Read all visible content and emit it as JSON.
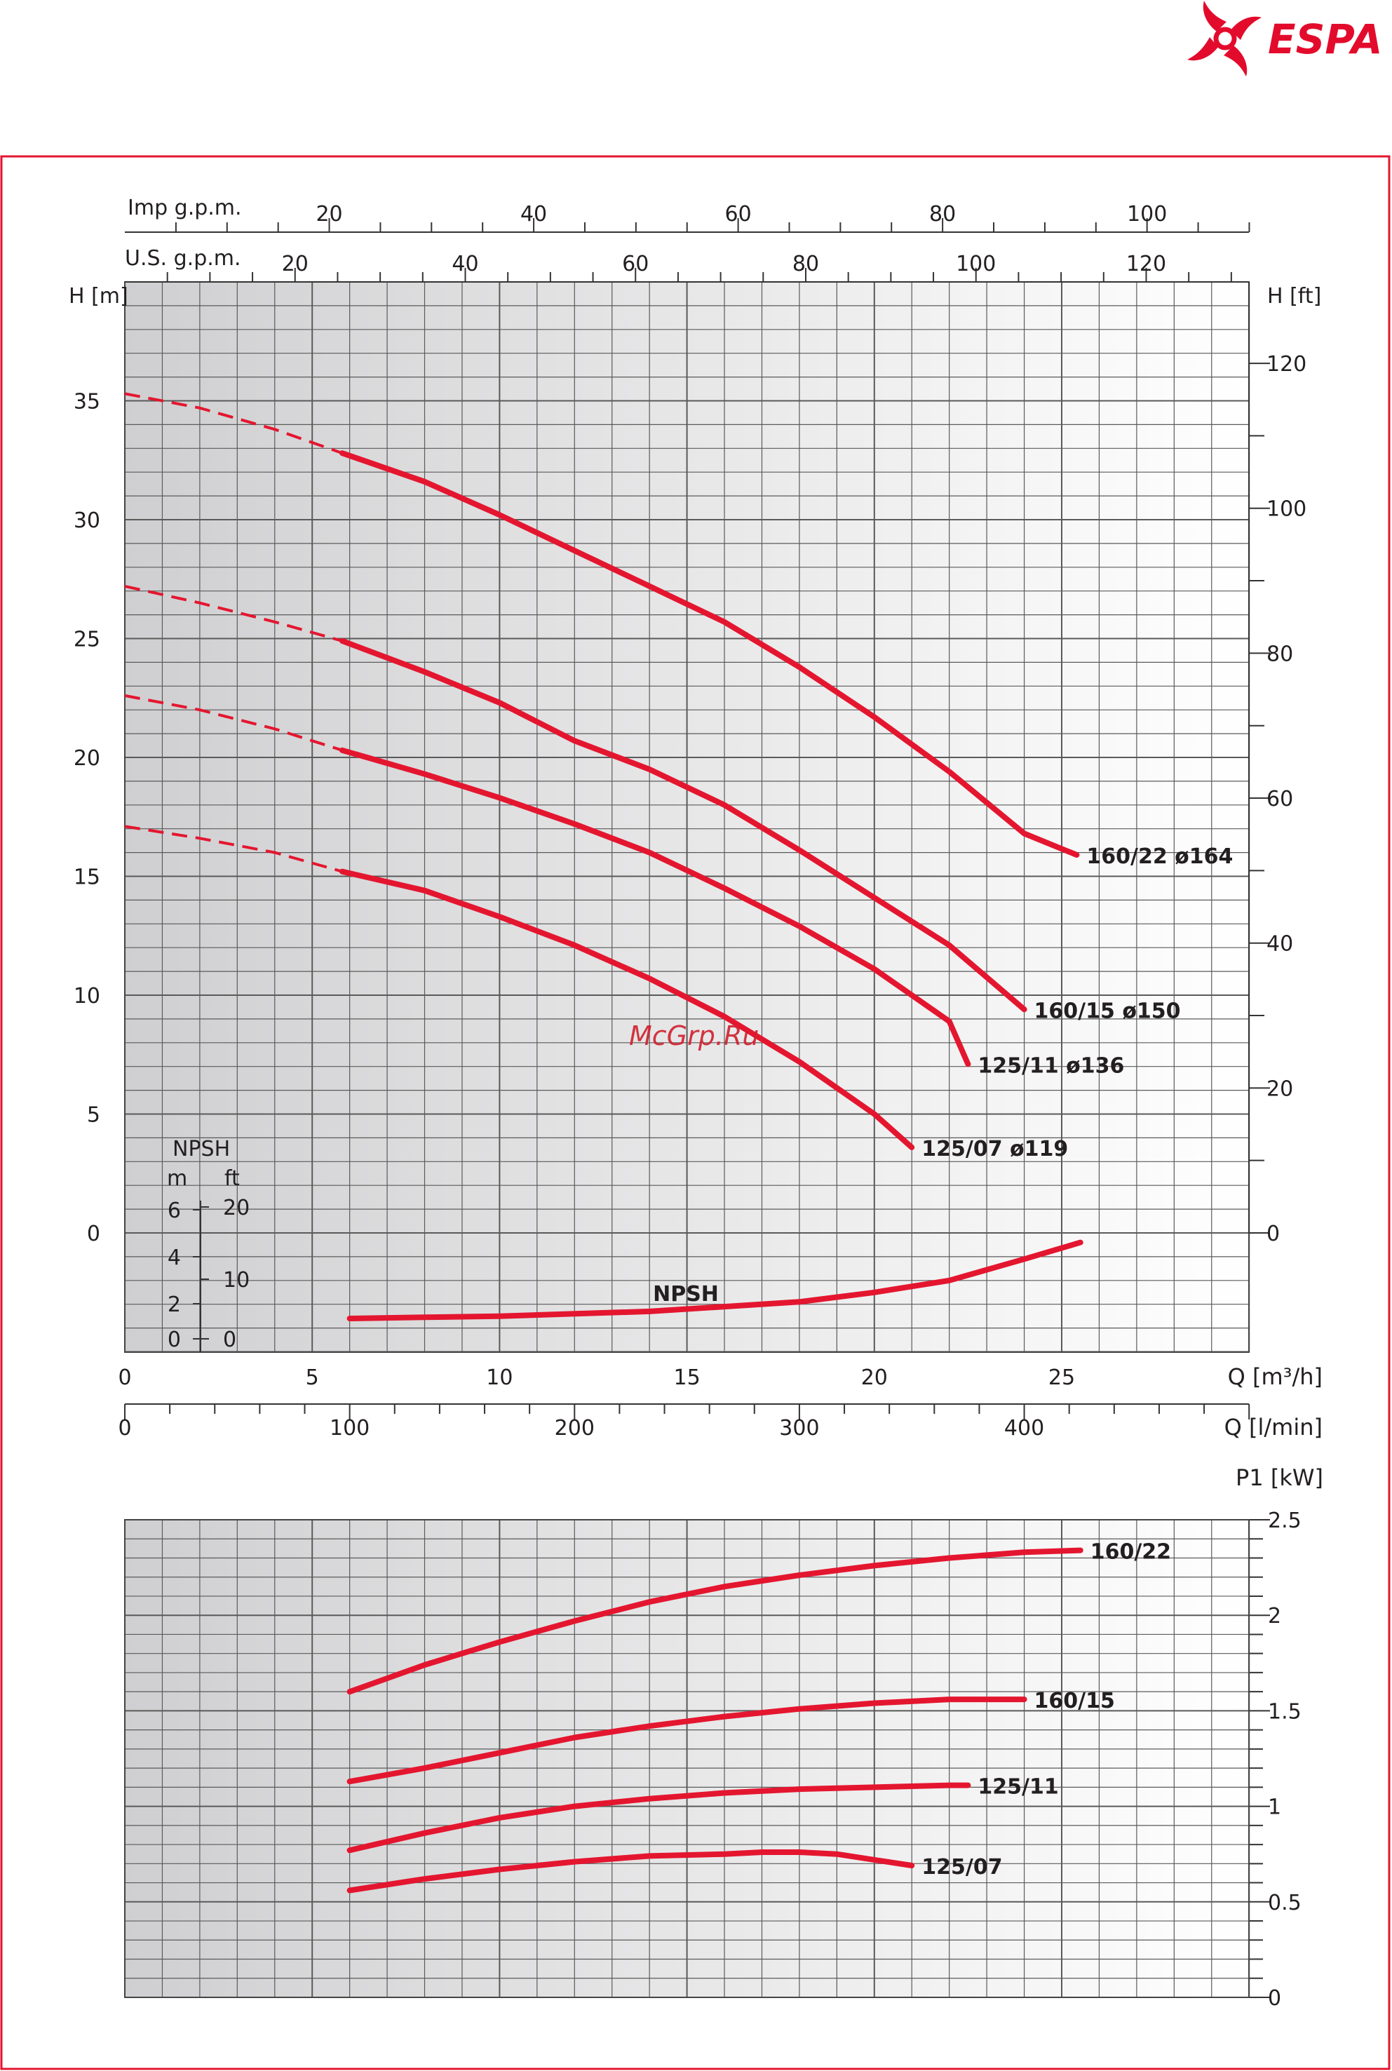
{
  "brand": {
    "name": "ESPA",
    "color": "#e30b2c"
  },
  "watermark": "McGrp.Ru",
  "colors": {
    "curve": "#e4162f",
    "frame": "#e4162f",
    "grid": "#5a5a5a",
    "text": "#231f20"
  },
  "chart_data": [
    {
      "type": "line",
      "name": "head",
      "xlabel": "Q [m³/h]",
      "xlim": [
        0,
        30
      ],
      "xticks": [
        0,
        5,
        10,
        15,
        20,
        25
      ],
      "ylabel_left": "H [m]",
      "ylim": [
        -5,
        40
      ],
      "yticks": [
        0,
        5,
        10,
        15,
        20,
        25,
        30,
        35
      ],
      "ylabel_right": "H [ft]",
      "yticks_right": [
        0,
        20,
        40,
        60,
        80,
        100,
        120
      ],
      "secondary_axes": [
        {
          "label": "Q [l/min]",
          "ticks": [
            0,
            100,
            200,
            300,
            400
          ]
        },
        {
          "label": "U.S. g.p.m.",
          "ticks": [
            20,
            40,
            60,
            80,
            100,
            120
          ]
        },
        {
          "label": "Imp g.p.m.",
          "ticks": [
            20,
            40,
            60,
            80,
            100
          ]
        }
      ],
      "npsh_axis": {
        "title": "NPSH",
        "unit_m": "m",
        "unit_ft": "ft",
        "ticks_m": [
          "6",
          "4",
          "2",
          "0"
        ],
        "ticks_ft": [
          "20",
          "10",
          "0"
        ]
      },
      "grid": true,
      "series": [
        {
          "name": "160/22  ø164",
          "dashed": {
            "x": [
              0,
              2,
              4,
              5.8
            ],
            "y": [
              35.3,
              34.7,
              33.8,
              32.8
            ]
          },
          "x": [
            5.8,
            8,
            10,
            12,
            14,
            16,
            18,
            20,
            22,
            24,
            25.4
          ],
          "y": [
            32.8,
            31.6,
            30.2,
            28.7,
            27.2,
            25.7,
            23.8,
            21.7,
            19.4,
            16.8,
            15.9
          ]
        },
        {
          "name": "160/15  ø150",
          "dashed": {
            "x": [
              0,
              2,
              4,
              5.8
            ],
            "y": [
              27.2,
              26.5,
              25.7,
              24.9
            ]
          },
          "x": [
            5.8,
            8,
            10,
            12,
            14,
            16,
            18,
            20,
            22,
            24
          ],
          "y": [
            24.9,
            23.6,
            22.3,
            20.7,
            19.5,
            18.0,
            16.1,
            14.1,
            12.1,
            9.4
          ]
        },
        {
          "name": "125/11  ø136",
          "dashed": {
            "x": [
              0,
              2,
              4,
              5.8
            ],
            "y": [
              22.6,
              22.0,
              21.2,
              20.3
            ]
          },
          "x": [
            5.8,
            8,
            10,
            12,
            14,
            16,
            18,
            20,
            22,
            22.5
          ],
          "y": [
            20.3,
            19.3,
            18.3,
            17.2,
            16.0,
            14.5,
            12.9,
            11.1,
            8.9,
            7.1
          ]
        },
        {
          "name": "125/07  ø119",
          "dashed": {
            "x": [
              0,
              2,
              4,
              5.8
            ],
            "y": [
              17.1,
              16.6,
              16.0,
              15.2
            ]
          },
          "x": [
            5.8,
            8,
            10,
            12,
            14,
            16,
            18,
            20,
            21
          ],
          "y": [
            15.2,
            14.4,
            13.3,
            12.1,
            10.7,
            9.1,
            7.2,
            5.0,
            3.6
          ]
        },
        {
          "name": "NPSH",
          "x": [
            6,
            8,
            10,
            12,
            14,
            16,
            18,
            20,
            22,
            24,
            25.5
          ],
          "y": [
            -3.6,
            -3.55,
            -3.5,
            -3.4,
            -3.3,
            -3.1,
            -2.9,
            -2.5,
            -2.0,
            -1.1,
            -0.4
          ]
        }
      ]
    },
    {
      "type": "line",
      "name": "power",
      "ylabel": "P1 [kW]",
      "xlim": [
        0,
        30
      ],
      "ylim": [
        0,
        2.5
      ],
      "yticks": [
        "0",
        "0.5",
        "1",
        "1.5",
        "2",
        "2.5"
      ],
      "grid": true,
      "series": [
        {
          "name": "160/22",
          "x": [
            6,
            8,
            10,
            12,
            14,
            16,
            18,
            20,
            22,
            24,
            25.5
          ],
          "y": [
            1.6,
            1.74,
            1.86,
            1.97,
            2.07,
            2.15,
            2.21,
            2.26,
            2.3,
            2.33,
            2.34
          ]
        },
        {
          "name": "160/15",
          "x": [
            6,
            8,
            10,
            12,
            14,
            16,
            18,
            20,
            22,
            24
          ],
          "y": [
            1.13,
            1.2,
            1.28,
            1.36,
            1.42,
            1.47,
            1.51,
            1.54,
            1.56,
            1.56
          ]
        },
        {
          "name": "125/11",
          "x": [
            6,
            8,
            10,
            12,
            14,
            16,
            18,
            20,
            22,
            22.5
          ],
          "y": [
            0.77,
            0.86,
            0.94,
            1.0,
            1.04,
            1.07,
            1.09,
            1.1,
            1.11,
            1.11
          ]
        },
        {
          "name": "125/07",
          "x": [
            6,
            8,
            10,
            12,
            14,
            16,
            17,
            18,
            19,
            20,
            21
          ],
          "y": [
            0.56,
            0.62,
            0.67,
            0.71,
            0.74,
            0.75,
            0.76,
            0.76,
            0.75,
            0.72,
            0.69
          ]
        }
      ]
    }
  ]
}
